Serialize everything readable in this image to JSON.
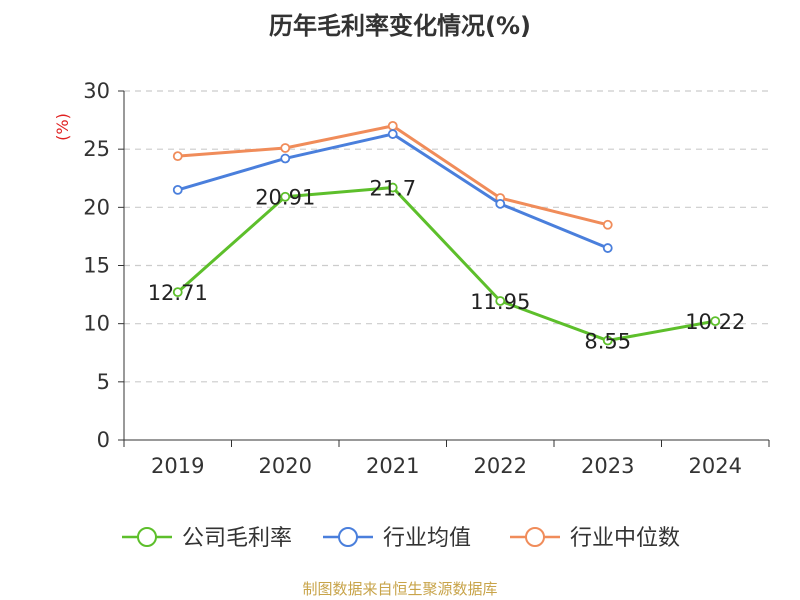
{
  "chart_data": {
    "type": "line",
    "title": "历年毛利率变化情况(%)",
    "ylabel": "(%)",
    "xlabel": "",
    "categories": [
      "2019",
      "2020",
      "2021",
      "2022",
      "2023",
      "2024"
    ],
    "ylim": [
      0,
      30
    ],
    "yticks": [
      0,
      5,
      10,
      15,
      20,
      25,
      30
    ],
    "grid": true,
    "legend_position": "bottom",
    "series": [
      {
        "name": "公司毛利率",
        "color": "#5dbf2b",
        "values": [
          12.71,
          20.91,
          21.7,
          11.95,
          8.55,
          10.22
        ],
        "labels": [
          "12.71",
          "20.91",
          "21.7",
          "11.95",
          "8.55",
          "10.22"
        ]
      },
      {
        "name": "行业均值",
        "color": "#4a7fdc",
        "values": [
          21.5,
          24.2,
          26.3,
          20.3,
          16.5,
          null
        ]
      },
      {
        "name": "行业中位数",
        "color": "#f08c5a",
        "values": [
          24.4,
          25.1,
          27.0,
          20.8,
          18.5,
          null
        ]
      }
    ]
  },
  "footer": "制图数据来自恒生聚源数据库"
}
